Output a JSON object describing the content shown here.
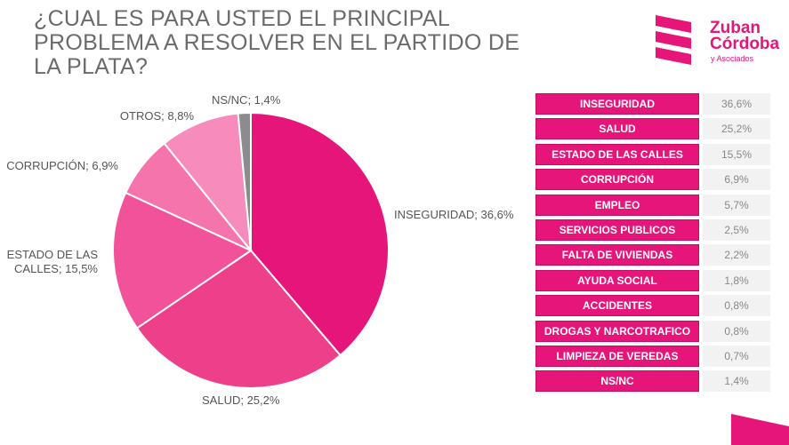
{
  "header": {
    "title": "¿CUAL ES PARA USTED EL PRINCIPAL PROBLEMA A RESOLVER EN EL PARTIDO DE LA PLATA?"
  },
  "logo": {
    "line1": "Zuban",
    "line2": "Córdoba",
    "line3": "y Asociados",
    "color": "#e6157a"
  },
  "chart_data": {
    "type": "pie",
    "title": "¿CUAL ES PARA USTED EL PRINCIPAL PROBLEMA A RESOLVER EN EL PARTIDO DE LA PLATA?",
    "slices": [
      {
        "label": "INSEGURIDAD",
        "value": 36.6,
        "display": "INSEGURIDAD; 36,6%",
        "color": "#e6157a"
      },
      {
        "label": "SALUD",
        "value": 25.2,
        "display": "SALUD; 25,2%",
        "color": "#ee3f8b"
      },
      {
        "label": "ESTADO DE LAS CALLES",
        "value": 15.5,
        "display": [
          "ESTADO DE LAS",
          "CALLES; 15,5%"
        ],
        "color": "#f25299"
      },
      {
        "label": "CORRUPCIÓN",
        "value": 6.9,
        "display": "CORRUPCIÓN; 6,9%",
        "color": "#f474ab"
      },
      {
        "label": "OTROS",
        "value": 8.8,
        "display": "OTROS; 8,8%",
        "color": "#f78bbb"
      },
      {
        "label": "NS/NC",
        "value": 1.4,
        "display": "NS/NC; 1,4%",
        "color": "#8c8c8c"
      }
    ]
  },
  "table": {
    "rows": [
      {
        "label": "INSEGURIDAD",
        "value": "36,6%"
      },
      {
        "label": "SALUD",
        "value": "25,2%"
      },
      {
        "label": "ESTADO DE LAS CALLES",
        "value": "15,5%"
      },
      {
        "label": "CORRUPCIÓN",
        "value": "6,9%"
      },
      {
        "label": "EMPLEO",
        "value": "5,7%"
      },
      {
        "label": "SERVICIOS PUBLICOS",
        "value": "2,5%"
      },
      {
        "label": "FALTA DE VIVIENDAS",
        "value": "2,2%"
      },
      {
        "label": "AYUDA SOCIAL",
        "value": "1,8%"
      },
      {
        "label": "ACCIDENTES",
        "value": "0,8%"
      },
      {
        "label": "DROGAS Y NARCOTRAFICO",
        "value": "0,8%"
      },
      {
        "label": "LIMPIEZA DE VEREDAS",
        "value": "0,7%"
      },
      {
        "label": "NS/NC",
        "value": "1,4%"
      }
    ]
  }
}
